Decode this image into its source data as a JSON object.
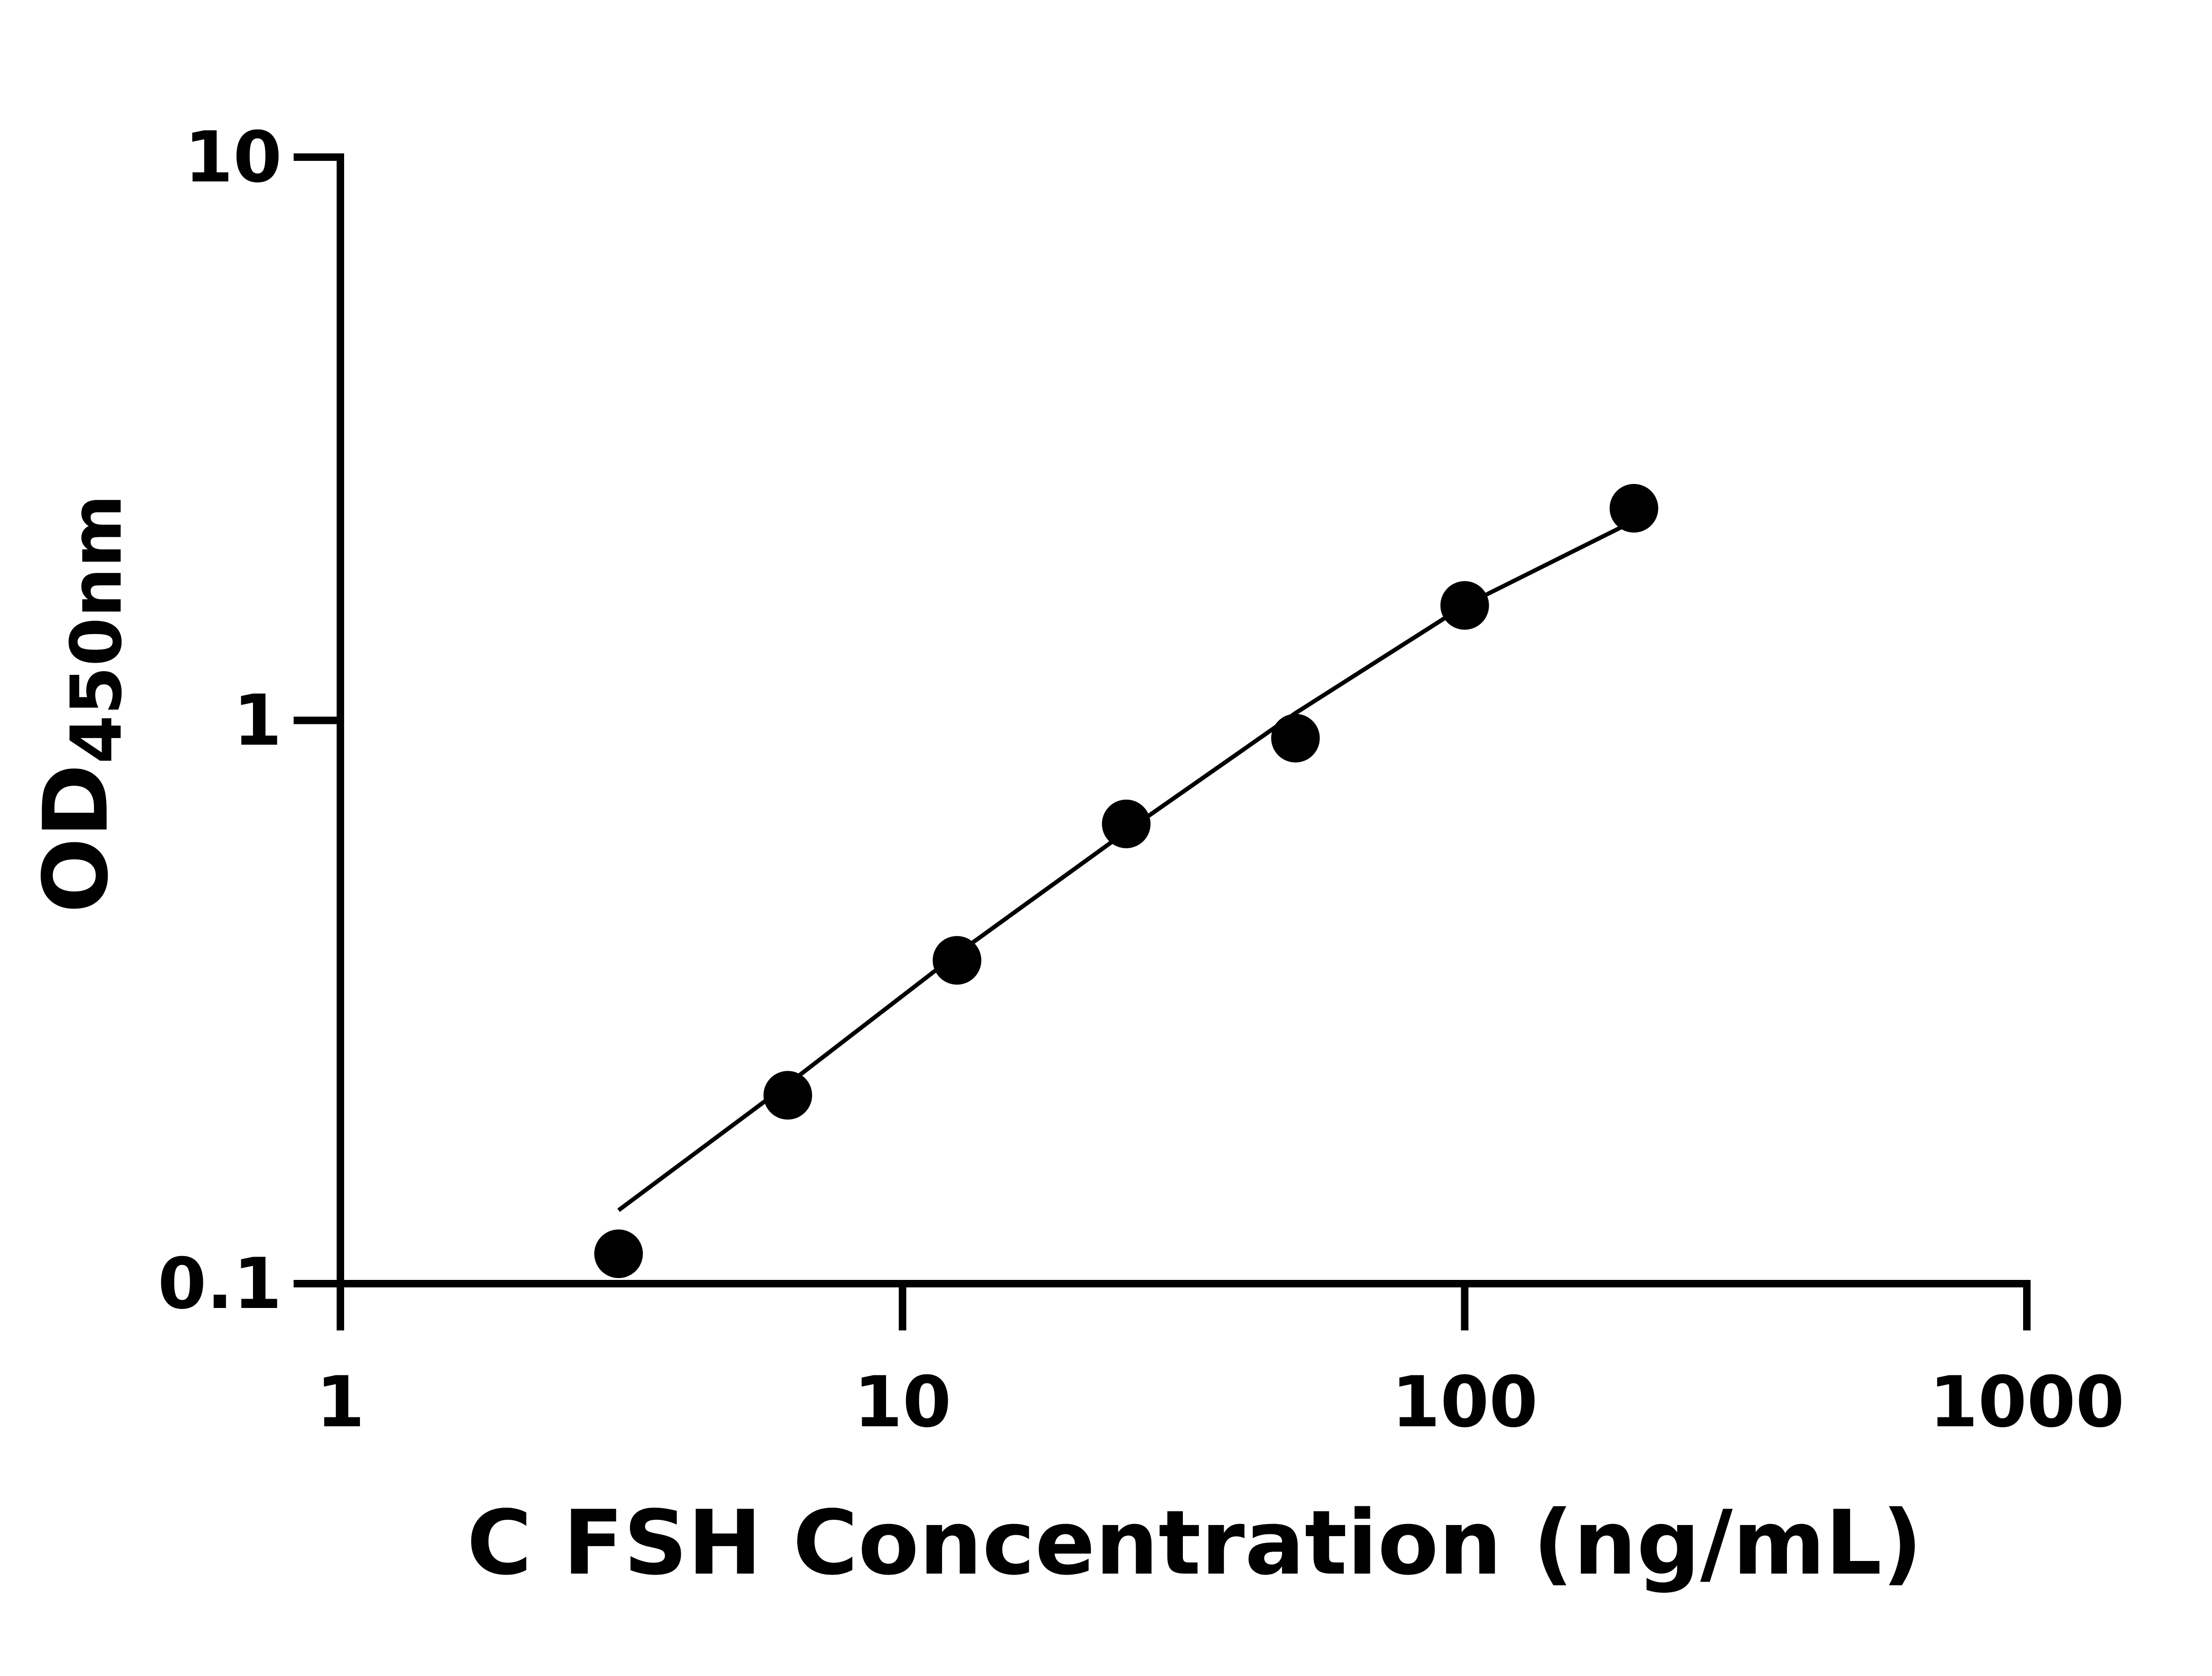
{
  "chart_data": {
    "type": "scatter",
    "title": "",
    "xlabel": "C FSH Concentration (ng/mL)",
    "ylabel": {
      "main": "OD",
      "subscript": "450nm"
    },
    "x_scale": "log",
    "y_scale": "log",
    "xlim": [
      1,
      1000
    ],
    "ylim": [
      0.1,
      10
    ],
    "x_ticks": [
      1,
      10,
      100,
      1000
    ],
    "x_tick_labels": [
      "1",
      "10",
      "100",
      "1000"
    ],
    "y_ticks": [
      0.1,
      1,
      10
    ],
    "y_tick_labels": [
      "0.1",
      "1",
      "10"
    ],
    "grid": false,
    "legend": "none",
    "series": [
      {
        "points": [
          {
            "x": 3.125,
            "y": 0.113
          },
          {
            "x": 6.25,
            "y": 0.216
          },
          {
            "x": 12.5,
            "y": 0.375
          },
          {
            "x": 25,
            "y": 0.655
          },
          {
            "x": 50,
            "y": 0.93
          },
          {
            "x": 100,
            "y": 1.6
          },
          {
            "x": 200,
            "y": 2.38
          }
        ]
      }
    ],
    "fit_line": {
      "points": [
        {
          "x": 3.125,
          "y": 0.135
        },
        {
          "x": 6.25,
          "y": 0.226
        },
        {
          "x": 12.5,
          "y": 0.385
        },
        {
          "x": 25,
          "y": 0.635
        },
        {
          "x": 50,
          "y": 1.03
        },
        {
          "x": 100,
          "y": 1.6
        },
        {
          "x": 200,
          "y": 2.26
        }
      ]
    },
    "colors": {
      "axis": "#000000",
      "points": "#000000",
      "line": "#000000"
    }
  }
}
